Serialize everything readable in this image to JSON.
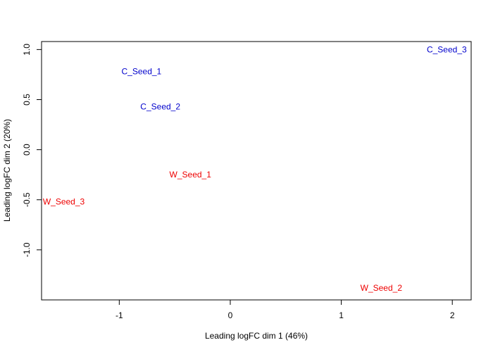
{
  "chart_data": {
    "type": "scatter",
    "title": "",
    "xlabel": "Leading logFC dim 1 (46%)",
    "ylabel": "Leading logFC dim 2 (20%)",
    "xlim": [
      -1.7,
      2.17
    ],
    "ylim": [
      -1.5,
      1.08
    ],
    "x_ticks": [
      -1,
      0,
      1,
      2
    ],
    "y_ticks": [
      -1.0,
      -0.5,
      0.0,
      0.5,
      1.0
    ],
    "x_tick_labels": [
      "-1",
      "0",
      "1",
      "2"
    ],
    "y_tick_labels": [
      "-1.0",
      "-0.5",
      "0.0",
      "0.5",
      "1.0"
    ],
    "grid": false,
    "legend": "none",
    "points": [
      {
        "label": "C_Seed_1",
        "x": -0.8,
        "y": 0.78,
        "color": "#0000cc"
      },
      {
        "label": "C_Seed_2",
        "x": -0.63,
        "y": 0.43,
        "color": "#0000cc"
      },
      {
        "label": "C_Seed_3",
        "x": 1.95,
        "y": 1.0,
        "color": "#0000cc"
      },
      {
        "label": "W_Seed_1",
        "x": -0.36,
        "y": -0.25,
        "color": "#ee0000"
      },
      {
        "label": "W_Seed_2",
        "x": 1.36,
        "y": -1.38,
        "color": "#ee0000"
      },
      {
        "label": "W_Seed_3",
        "x": -1.5,
        "y": -0.52,
        "color": "#ee0000"
      }
    ]
  }
}
